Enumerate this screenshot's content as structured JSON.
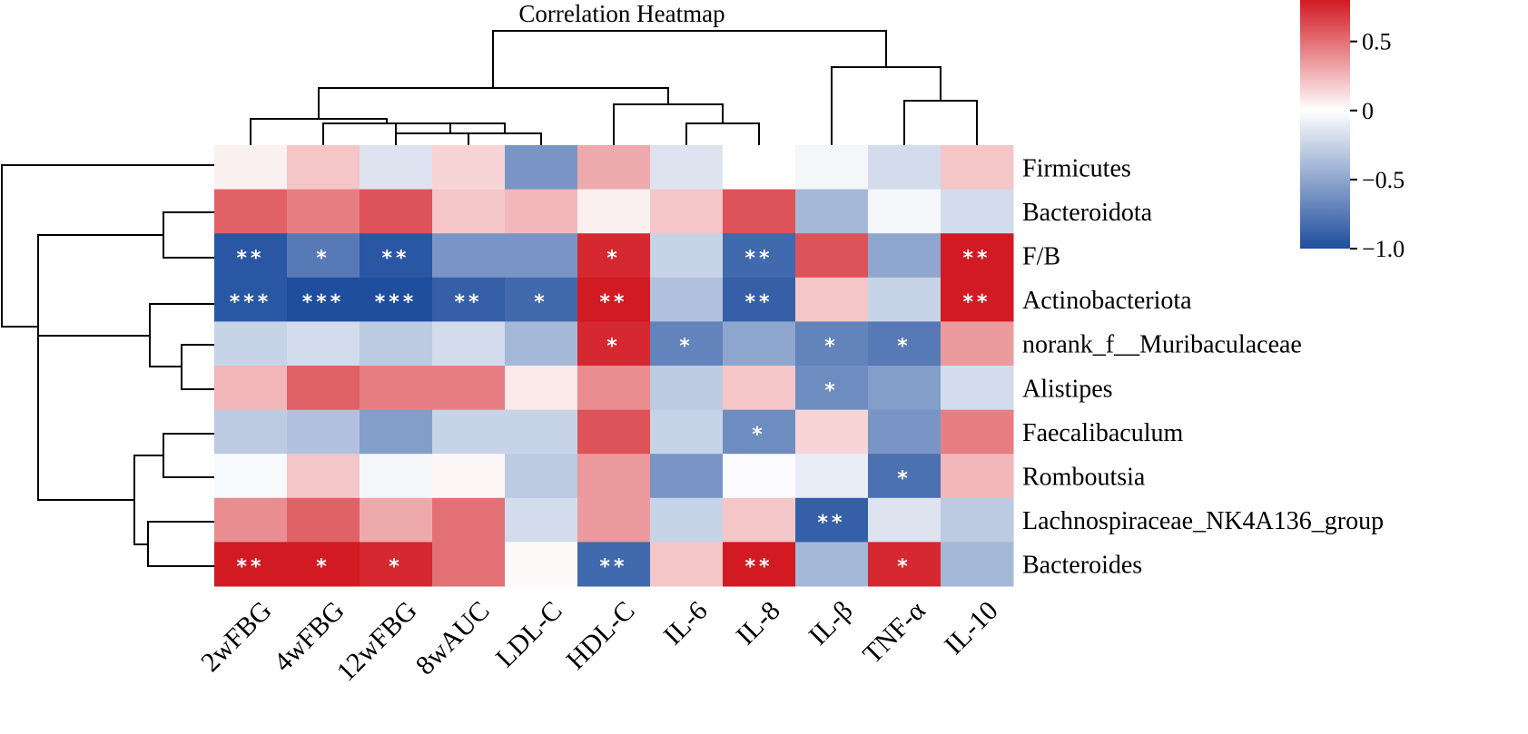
{
  "chart_data": {
    "type": "heatmap",
    "title": "Correlation Heatmap",
    "rows": [
      "Firmicutes",
      "Bacteroidota",
      "F/B",
      "Actinobacteriota",
      "norank_f__Muribaculaceae",
      "Alistipes",
      "Faecalibaculum",
      "Romboutsia",
      "Lachnospiraceae_NK4A136_group",
      "Bacteroides"
    ],
    "columns": [
      "2wFBG",
      "4wFBG",
      "12wFBG",
      "8wAUC",
      "LDL-C",
      "HDL-C",
      "IL-6",
      "IL-8",
      "IL-β",
      "TNF-α",
      "IL-10"
    ],
    "values": [
      [
        0.05,
        0.2,
        -0.15,
        0.15,
        -0.6,
        0.3,
        -0.15,
        0.0,
        -0.05,
        -0.2,
        0.2
      ],
      [
        0.55,
        0.45,
        0.6,
        0.2,
        0.25,
        0.05,
        0.2,
        0.6,
        -0.4,
        -0.05,
        -0.2
      ],
      [
        -0.95,
        -0.75,
        -0.95,
        -0.6,
        -0.6,
        0.75,
        -0.25,
        -0.85,
        0.6,
        -0.5,
        0.85
      ],
      [
        -0.95,
        -1.0,
        -1.0,
        -0.9,
        -0.85,
        0.85,
        -0.35,
        -0.9,
        0.2,
        -0.25,
        0.85
      ],
      [
        -0.25,
        -0.2,
        -0.3,
        -0.2,
        -0.4,
        0.75,
        -0.7,
        -0.5,
        -0.7,
        -0.75,
        0.35
      ],
      [
        0.25,
        0.55,
        0.45,
        0.45,
        0.08,
        0.4,
        -0.3,
        0.2,
        -0.65,
        -0.55,
        -0.2
      ],
      [
        -0.3,
        -0.35,
        -0.55,
        -0.25,
        -0.25,
        0.6,
        -0.25,
        -0.65,
        0.15,
        -0.6,
        0.45
      ],
      [
        -0.03,
        0.2,
        -0.05,
        0.03,
        -0.3,
        0.35,
        -0.6,
        -0.02,
        -0.1,
        -0.8,
        0.25
      ],
      [
        0.4,
        0.55,
        0.3,
        0.5,
        -0.2,
        0.35,
        -0.25,
        0.2,
        -0.9,
        -0.15,
        -0.3
      ],
      [
        0.85,
        0.85,
        0.75,
        0.5,
        0.02,
        -0.85,
        0.2,
        0.85,
        -0.4,
        0.75,
        -0.4
      ]
    ],
    "significance": [
      [
        "",
        "",
        "",
        "",
        "",
        "",
        "",
        "",
        "",
        "",
        ""
      ],
      [
        "",
        "",
        "",
        "",
        "",
        "",
        "",
        "",
        "",
        "",
        ""
      ],
      [
        "**",
        "*",
        "**",
        "",
        "",
        "*",
        "",
        "**",
        "",
        "",
        "**"
      ],
      [
        "***",
        "***",
        "***",
        "**",
        "*",
        "**",
        "",
        "**",
        "",
        "",
        "**"
      ],
      [
        "",
        "",
        "",
        "",
        "",
        "*",
        "*",
        "",
        "*",
        "*",
        ""
      ],
      [
        "",
        "",
        "",
        "",
        "",
        "",
        "",
        "",
        "*",
        "",
        ""
      ],
      [
        "",
        "",
        "",
        "",
        "",
        "",
        "",
        "*",
        "",
        "",
        ""
      ],
      [
        "",
        "",
        "",
        "",
        "",
        "",
        "",
        "",
        "",
        "*",
        ""
      ],
      [
        "",
        "",
        "",
        "",
        "",
        "",
        "",
        "",
        "**",
        "",
        ""
      ],
      [
        "**",
        "*",
        "*",
        "",
        "",
        "**",
        "",
        "**",
        "",
        "*",
        ""
      ]
    ],
    "color_scale": {
      "range": [
        -1.0,
        0.8
      ],
      "ticks": [
        {
          "value": 0.5,
          "label": "0.5"
        },
        {
          "value": 0,
          "label": "0"
        },
        {
          "value": -0.5,
          "label": "−0.5"
        },
        {
          "value": -1.0,
          "label": "−1.0"
        }
      ],
      "colors": {
        "low": "#1f4e9e",
        "mid": "#ffffff",
        "high": "#d21a22"
      }
    },
    "column_dendrogram": true,
    "row_dendrogram": true
  }
}
